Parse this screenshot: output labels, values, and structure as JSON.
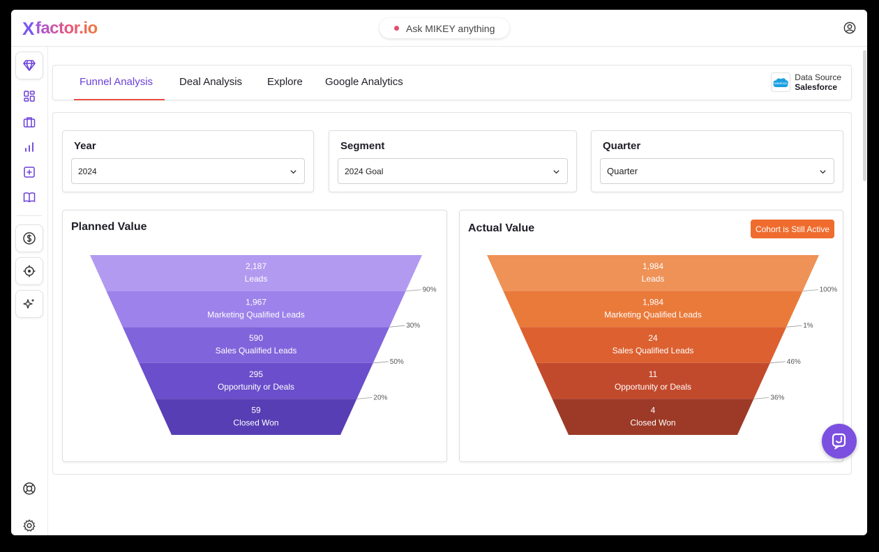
{
  "app": {
    "logo_mark": "X",
    "logo_text": "factor.io",
    "ask_placeholder": "Ask MIKEY anything"
  },
  "sidebar": {
    "items": [
      {
        "name": "diamond-icon"
      },
      {
        "name": "dashboard-icon"
      },
      {
        "name": "briefcase-icon"
      },
      {
        "name": "bar-chart-icon"
      },
      {
        "name": "plus-square-icon"
      },
      {
        "name": "book-icon"
      },
      {
        "name": "dollar-icon"
      },
      {
        "name": "target-icon"
      },
      {
        "name": "sparkle-icon"
      },
      {
        "name": "lifebuoy-icon"
      },
      {
        "name": "gear-icon"
      }
    ]
  },
  "tabs": [
    {
      "label": "Funnel Analysis",
      "active": true
    },
    {
      "label": "Deal Analysis",
      "active": false
    },
    {
      "label": "Explore",
      "active": false
    },
    {
      "label": "Google Analytics",
      "active": false
    }
  ],
  "data_source": {
    "label": "Data Source",
    "value": "Salesforce",
    "logo_text": "salesforce"
  },
  "filters": {
    "year": {
      "label": "Year",
      "value": "2024"
    },
    "segment": {
      "label": "Segment",
      "value": "2024 Goal"
    },
    "quarter": {
      "label": "Quarter",
      "value": "Quarter"
    }
  },
  "planned": {
    "title": "Planned Value",
    "colors": [
      "#b29af0",
      "#9c82ea",
      "#8064db",
      "#6a4ecb",
      "#573eb4"
    ]
  },
  "actual": {
    "title": "Actual Value",
    "badge": "Cohort is Still Active",
    "colors": [
      "#ee9257",
      "#ea7a3a",
      "#dc6030",
      "#c24a2c",
      "#9c3a27"
    ]
  },
  "chart_data": [
    {
      "type": "funnel",
      "title": "Planned Value",
      "categories": [
        "Leads",
        "Marketing Qualified Leads",
        "Sales Qualified Leads",
        "Opportunity or Deals",
        "Closed Won"
      ],
      "values": [
        2187,
        1967,
        590,
        295,
        59
      ],
      "value_labels": [
        "2,187",
        "1,967",
        "590",
        "295",
        "59"
      ],
      "conversion_labels": [
        "90%",
        "30%",
        "50%",
        "20%"
      ]
    },
    {
      "type": "funnel",
      "title": "Actual Value",
      "categories": [
        "Leads",
        "Marketing Qualified Leads",
        "Sales Qualified Leads",
        "Opportunity or Deals",
        "Closed Won"
      ],
      "values": [
        1984,
        1984,
        24,
        11,
        4
      ],
      "value_labels": [
        "1,984",
        "1,984",
        "24",
        "11",
        "4"
      ],
      "conversion_labels": [
        "100%",
        "1%",
        "46%",
        "36%"
      ]
    }
  ]
}
